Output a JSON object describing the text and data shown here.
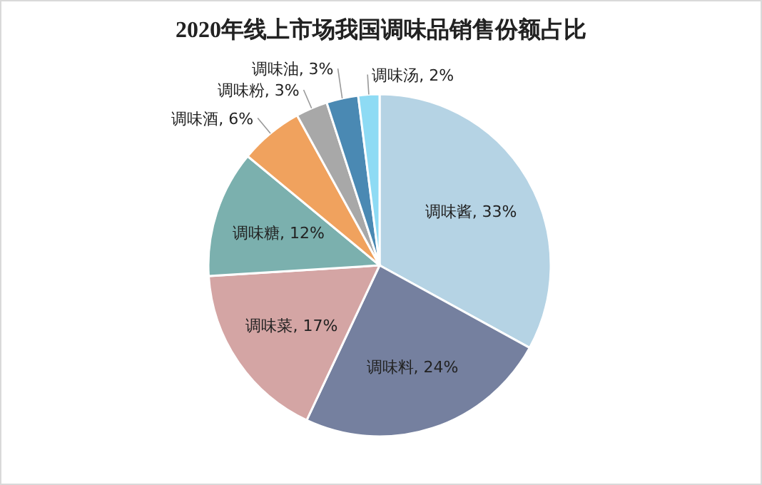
{
  "chart_data": {
    "type": "pie",
    "title": "2020年线上市场我国调味品销售份额占比",
    "categories": [
      "调味酱",
      "调味料",
      "调味菜",
      "调味糖",
      "调味酒",
      "调味粉",
      "调味油",
      "调味汤"
    ],
    "values": [
      33,
      24,
      17,
      12,
      6,
      3,
      3,
      2
    ],
    "value_labels": [
      ", 33%",
      ", 24%",
      ", 17%",
      ", 12%",
      ", 6%",
      ", 3%",
      ", 3%",
      ", 2%"
    ],
    "colors": [
      "#b5d3e4",
      "#75809f",
      "#d4a5a4",
      "#7bb0ae",
      "#f0a25e",
      "#a8a8a8",
      "#4a89b3",
      "#8edbf4"
    ]
  }
}
